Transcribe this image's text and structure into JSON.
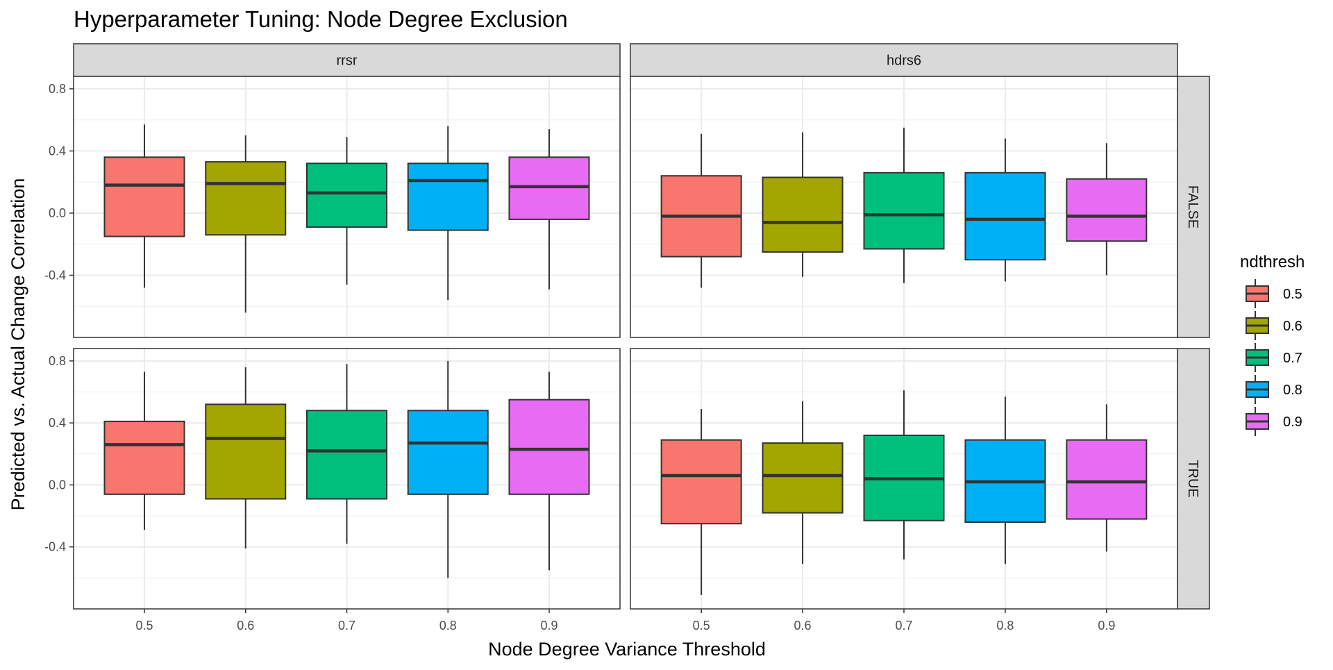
{
  "chart_data": {
    "type": "boxplot",
    "title": "Hyperparameter Tuning: Node Degree Exclusion",
    "xlabel": "Node Degree Variance Threshold",
    "ylabel": "Predicted vs. Actual Change Correlation",
    "col_facets": [
      "rrsr",
      "hdrs6"
    ],
    "row_facets": [
      "FALSE",
      "TRUE"
    ],
    "categories": [
      "0.5",
      "0.6",
      "0.7",
      "0.8",
      "0.9"
    ],
    "y_ticks": [
      "-0.4",
      "0.0",
      "0.4",
      "0.8"
    ],
    "y_tick_values": [
      -0.4,
      0.0,
      0.4,
      0.8
    ],
    "ylim": [
      -0.8,
      0.88
    ],
    "grid": true,
    "legend": {
      "title": "ndthresh",
      "position": "right",
      "entries": [
        "0.5",
        "0.6",
        "0.7",
        "0.8",
        "0.9"
      ]
    },
    "colors": [
      "#F8766D",
      "#A3A500",
      "#00BF7D",
      "#00B0F6",
      "#E76BF3"
    ],
    "panels": [
      {
        "col": "rrsr",
        "row": "FALSE",
        "boxes": [
          {
            "x": "0.5",
            "ymin": -0.48,
            "q1": -0.15,
            "median": 0.18,
            "q3": 0.36,
            "ymax": 0.57
          },
          {
            "x": "0.6",
            "ymin": -0.64,
            "q1": -0.14,
            "median": 0.19,
            "q3": 0.33,
            "ymax": 0.5
          },
          {
            "x": "0.7",
            "ymin": -0.46,
            "q1": -0.09,
            "median": 0.13,
            "q3": 0.32,
            "ymax": 0.49
          },
          {
            "x": "0.8",
            "ymin": -0.56,
            "q1": -0.11,
            "median": 0.21,
            "q3": 0.32,
            "ymax": 0.56
          },
          {
            "x": "0.9",
            "ymin": -0.49,
            "q1": -0.04,
            "median": 0.17,
            "q3": 0.36,
            "ymax": 0.54
          }
        ]
      },
      {
        "col": "hdrs6",
        "row": "FALSE",
        "boxes": [
          {
            "x": "0.5",
            "ymin": -0.48,
            "q1": -0.28,
            "median": -0.02,
            "q3": 0.24,
            "ymax": 0.51
          },
          {
            "x": "0.6",
            "ymin": -0.41,
            "q1": -0.25,
            "median": -0.06,
            "q3": 0.23,
            "ymax": 0.52
          },
          {
            "x": "0.7",
            "ymin": -0.45,
            "q1": -0.23,
            "median": -0.01,
            "q3": 0.26,
            "ymax": 0.55
          },
          {
            "x": "0.8",
            "ymin": -0.44,
            "q1": -0.3,
            "median": -0.04,
            "q3": 0.26,
            "ymax": 0.48
          },
          {
            "x": "0.9",
            "ymin": -0.4,
            "q1": -0.18,
            "median": -0.02,
            "q3": 0.22,
            "ymax": 0.45
          }
        ]
      },
      {
        "col": "rrsr",
        "row": "TRUE",
        "boxes": [
          {
            "x": "0.5",
            "ymin": -0.29,
            "q1": -0.06,
            "median": 0.26,
            "q3": 0.41,
            "ymax": 0.73
          },
          {
            "x": "0.6",
            "ymin": -0.41,
            "q1": -0.09,
            "median": 0.3,
            "q3": 0.52,
            "ymax": 0.76
          },
          {
            "x": "0.7",
            "ymin": -0.38,
            "q1": -0.09,
            "median": 0.22,
            "q3": 0.48,
            "ymax": 0.78
          },
          {
            "x": "0.8",
            "ymin": -0.6,
            "q1": -0.06,
            "median": 0.27,
            "q3": 0.48,
            "ymax": 0.8
          },
          {
            "x": "0.9",
            "ymin": -0.55,
            "q1": -0.06,
            "median": 0.23,
            "q3": 0.55,
            "ymax": 0.73
          }
        ]
      },
      {
        "col": "hdrs6",
        "row": "TRUE",
        "boxes": [
          {
            "x": "0.5",
            "ymin": -0.71,
            "q1": -0.25,
            "median": 0.06,
            "q3": 0.29,
            "ymax": 0.49
          },
          {
            "x": "0.6",
            "ymin": -0.51,
            "q1": -0.18,
            "median": 0.06,
            "q3": 0.27,
            "ymax": 0.54
          },
          {
            "x": "0.7",
            "ymin": -0.48,
            "q1": -0.23,
            "median": 0.04,
            "q3": 0.32,
            "ymax": 0.61
          },
          {
            "x": "0.8",
            "ymin": -0.51,
            "q1": -0.24,
            "median": 0.02,
            "q3": 0.29,
            "ymax": 0.57
          },
          {
            "x": "0.9",
            "ymin": -0.43,
            "q1": -0.22,
            "median": 0.02,
            "q3": 0.29,
            "ymax": 0.52
          }
        ]
      }
    ]
  }
}
